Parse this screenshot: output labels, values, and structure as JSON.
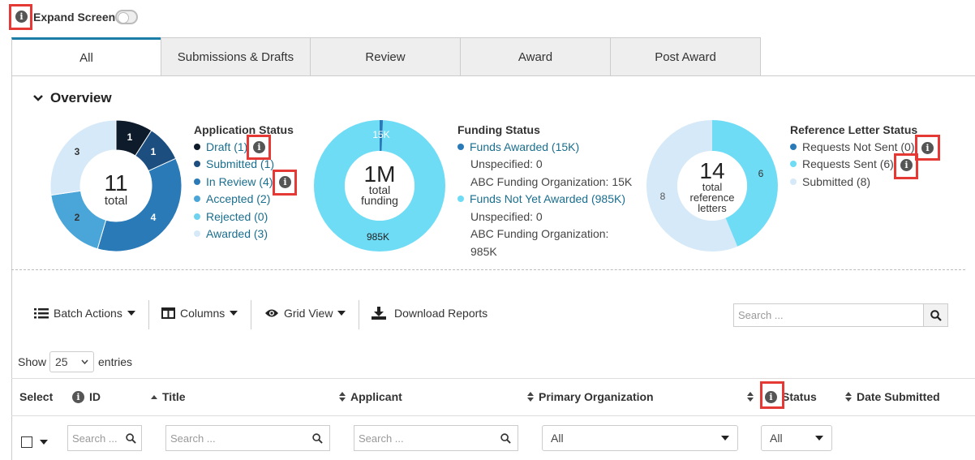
{
  "header": {
    "expand_label": "Expand Screen"
  },
  "tabs": [
    "All",
    "Submissions & Drafts",
    "Review",
    "Award",
    "Post Award"
  ],
  "overview": {
    "title": "Overview"
  },
  "application_status": {
    "title": "Application Status",
    "center_number": "11",
    "center_label": "total",
    "items": [
      {
        "label": "Draft (1)",
        "color": "#0d1b2a"
      },
      {
        "label": "Submitted (1)",
        "color": "#1c4e80"
      },
      {
        "label": "In Review (4)",
        "color": "#2a7ab8"
      },
      {
        "label": "Accepted (2)",
        "color": "#4aa6d8"
      },
      {
        "label": "Rejected (0)",
        "color": "#6fd3f0"
      },
      {
        "label": "Awarded (3)",
        "color": "#d6e9f8"
      }
    ],
    "slice_labels": [
      "1",
      "1",
      "4",
      "2",
      "3"
    ]
  },
  "funding_status": {
    "title": "Funding Status",
    "center_number": "1M",
    "center_label1": "total",
    "center_label2": "funding",
    "label_top": "15K",
    "label_bottom": "985K",
    "awarded": "Funds Awarded (15K)",
    "awarded_unspecified": "Unspecified: 0",
    "awarded_abc": "ABC Funding Organization: 15K",
    "not_awarded": "Funds Not Yet Awarded (985K)",
    "not_awarded_unspecified": "Unspecified: 0",
    "not_awarded_abc1": "ABC Funding Organization:",
    "not_awarded_abc2": "985K",
    "colors": {
      "awarded": "#2a7ab8",
      "not_awarded": "#6fdcf5"
    }
  },
  "reference_status": {
    "title": "Reference Letter Status",
    "center_number": "14",
    "center_label1": "total",
    "center_label2": "reference",
    "center_label3": "letters",
    "slice_sent": "6",
    "slice_submitted": "8",
    "items": [
      {
        "label": "Requests Not Sent (0)",
        "color": "#2a7ab8"
      },
      {
        "label": "Requests Sent (6)",
        "color": "#6fdcf5"
      },
      {
        "label": "Submitted (8)",
        "color": "#d6e9f8"
      }
    ]
  },
  "toolbar": {
    "batch": "Batch Actions",
    "columns": "Columns",
    "grid": "Grid View",
    "download": "Download Reports",
    "search_placeholder": "Search ..."
  },
  "entries": {
    "show": "Show",
    "value": "25",
    "entries": "entries"
  },
  "table": {
    "headers": [
      "Select",
      "ID",
      "Title",
      "Applicant",
      "Primary Organization",
      "Status",
      "Date Submitted"
    ],
    "filter_placeholder_short": "Search ...",
    "filter_placeholder": "Search ...",
    "org_select": "All",
    "status_select": "All"
  }
}
